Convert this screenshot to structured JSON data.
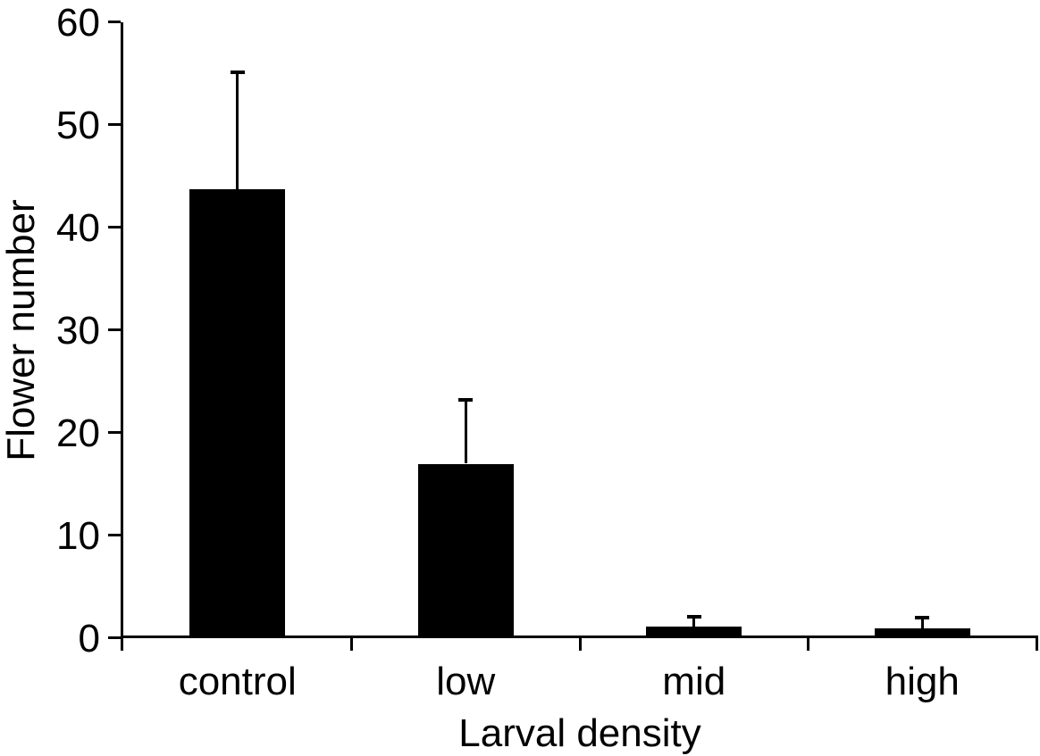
{
  "figure": {
    "background_color": "#ffffff",
    "foreground_color": "#000000"
  },
  "chart_data": {
    "type": "bar",
    "title": "",
    "xlabel": "Larval density",
    "ylabel": "Flower number",
    "categories": [
      "control",
      "low",
      "mid",
      "high"
    ],
    "values": [
      43.7,
      17.0,
      1.1,
      1.0
    ],
    "errors_plus": [
      11.4,
      6.2,
      1.0,
      1.0
    ],
    "error_bar_style": "upper-only-with-caps",
    "yticks": [
      0,
      10,
      20,
      30,
      40,
      50,
      60
    ],
    "ylim": [
      0,
      60
    ],
    "grid": "off",
    "legend": "none",
    "bar_color": "#000000",
    "axis_color": "#000000"
  }
}
